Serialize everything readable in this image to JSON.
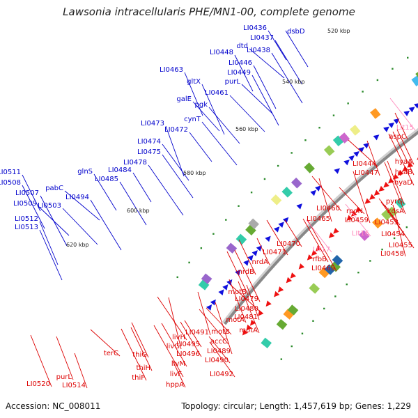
{
  "title": "Lawsonia intracellularis PHE/MN1-00, complete genome",
  "footer": {
    "accession": "Accession: NC_008011",
    "summary": "Topology: circular; Length: 1,457,619 bp; Genes: 1,229"
  },
  "colors": {
    "forward_label": "#0000cc",
    "reverse_label": "#dd0000",
    "rna_label": "#ff88bb",
    "backbone": "#888888",
    "tick": "#2a8a2a",
    "forward_arrow": "#1010dd",
    "reverse_arrow": "#ee1111"
  },
  "kbp_ticks": [
    "520 kbp",
    "540 kbp",
    "560 kbp",
    "580 kbp",
    "600 kbp",
    "620 kbp"
  ],
  "forward_genes": [
    "LI0436",
    "dsbD",
    "LI0437",
    "LI0438",
    "dtd",
    "LI0448",
    "LI0446",
    "LI0449",
    "purL",
    "LI0461",
    "LI0463",
    "gltX",
    "galE",
    "pgk",
    "cynT",
    "LI0473",
    "LI0472",
    "LI0474",
    "LI0475",
    "LI0478",
    "LI0484",
    "glnS",
    "LI0485",
    "LI0494",
    "pabC",
    "LI0511",
    "LI0508",
    "LI0507",
    "LI0509",
    "LI0503",
    "LI0512",
    "LI0513"
  ],
  "reverse_genes": [
    "aspC",
    "hyaA",
    "hyaB",
    "hyaD",
    "LI0444",
    "LI0447",
    "pyrG",
    "kdsA",
    "rpoN",
    "LI0460",
    "LI0465",
    "LI0459",
    "LI0453",
    "LI0454",
    "LI0455",
    "LI0458",
    "LI0470",
    "LI0471",
    "rfbB",
    "LI0469",
    "nrdA",
    "nrdB",
    "motB",
    "LI0479",
    "LI0480",
    "LI0481",
    "motA",
    "motA",
    "motB",
    "accC",
    "LI0491",
    "LI0489",
    "LI0490",
    "LI0492",
    "livH",
    "livG",
    "LI0495",
    "LI0496",
    "livM",
    "livF",
    "hppA",
    "thiG",
    "thiH",
    "thiF",
    "terC",
    "LI0514",
    "purL",
    "LI0520"
  ],
  "rna_genes": [
    "LIt15",
    "LIt16",
    "LIt17"
  ]
}
